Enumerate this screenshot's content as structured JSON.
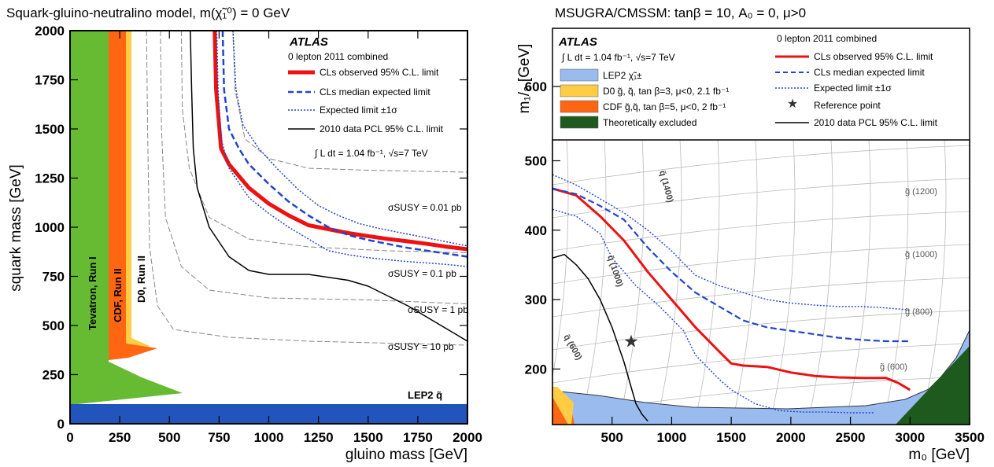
{
  "chart_data": [
    {
      "type": "line",
      "title": "Squark-gluino-neutralino model,  m(χ̃₁⁰) = 0 GeV",
      "xlabel": "gluino mass [GeV]",
      "ylabel": "squark mass [GeV]",
      "xlim": [
        0,
        2000
      ],
      "ylim": [
        0,
        2000
      ],
      "xticks": [
        "0",
        "250",
        "500",
        "750",
        "1000",
        "1250",
        "1500",
        "1750",
        "2000"
      ],
      "yticks": [
        "0",
        "250",
        "500",
        "750",
        "1000",
        "1250",
        "1500",
        "1750",
        "2000"
      ],
      "experiment": "ATLAS",
      "dataset": "0 lepton 2011 combined",
      "luminosity": "∫ L dt = 1.04 fb⁻¹, √s=7 TeV",
      "legend_position": "top-right",
      "legend": [
        {
          "label": "CLs observed 95% C.L. limit",
          "color": "#ee1111",
          "style": "solid-thick"
        },
        {
          "label": "CLs median expected limit",
          "color": "#2244cc",
          "style": "dashed"
        },
        {
          "label": "Expected limit ±1σ",
          "color": "#2244cc",
          "style": "dotted"
        },
        {
          "label": "2010 data PCL 95% C.L. limit",
          "color": "#000000",
          "style": "solid"
        }
      ],
      "series": [
        {
          "name": "CLs observed 95% C.L. limit",
          "x": [
            728,
            735,
            760,
            800,
            900,
            1000,
            1100,
            1200,
            1300,
            1400,
            1500,
            1600,
            1700,
            1800,
            1900,
            2000
          ],
          "y": [
            2000,
            1700,
            1400,
            1320,
            1200,
            1120,
            1060,
            1010,
            990,
            970,
            955,
            940,
            928,
            915,
            900,
            888
          ]
        },
        {
          "name": "CLs median expected limit",
          "x": [
            768,
            775,
            800,
            850,
            900,
            1000,
            1100,
            1200,
            1300,
            1400,
            1500,
            1600,
            1700,
            1800,
            1900,
            2000
          ],
          "y": [
            2000,
            1700,
            1500,
            1400,
            1320,
            1220,
            1130,
            1060,
            1000,
            960,
            935,
            915,
            895,
            880,
            865,
            850
          ]
        },
        {
          "name": "Expected limit +1σ",
          "x": [
            820,
            835,
            870,
            950,
            1050,
            1150,
            1250,
            1350,
            1450,
            1550,
            1650,
            1750,
            1850,
            1950,
            2000
          ],
          "y": [
            2000,
            1700,
            1520,
            1400,
            1290,
            1190,
            1110,
            1060,
            1020,
            995,
            975,
            955,
            935,
            915,
            905
          ]
        },
        {
          "name": "Expected limit −1σ",
          "x": [
            738,
            745,
            760,
            800,
            900,
            1000,
            1100,
            1200,
            1300,
            1400,
            1500,
            1600,
            1700,
            1800,
            1900,
            2000
          ],
          "y": [
            2000,
            1700,
            1450,
            1300,
            1150,
            1070,
            1000,
            940,
            880,
            860,
            845,
            835,
            825,
            818,
            810,
            800
          ]
        },
        {
          "name": "2010 data PCL 95% C.L. limit",
          "x": [
            605,
            612,
            620,
            640,
            700,
            800,
            900,
            1000,
            1200,
            1400,
            1500,
            1600,
            1700,
            1800,
            1900,
            2000
          ],
          "y": [
            2000,
            1700,
            1400,
            1200,
            1000,
            850,
            780,
            760,
            760,
            730,
            700,
            650,
            600,
            540,
            480,
            420
          ]
        }
      ],
      "excluded_regions": [
        {
          "name": "Tevatron, Run I",
          "color": "#66bb33"
        },
        {
          "name": "CDF, Run II",
          "color": "#ff6611"
        },
        {
          "name": "D0, Run II",
          "color": "#ffcc44"
        },
        {
          "name": "LEP2 q̃",
          "color": "#2255bb"
        }
      ],
      "cross_section_labels": [
        "σSUSY = 0.01 pb",
        "σSUSY = 0.1 pb",
        "σSUSY = 1 pb",
        "σSUSY = 10 pb"
      ]
    },
    {
      "type": "line",
      "title": "MSUGRA/CMSSM: tanβ = 10, A₀ = 0, μ>0",
      "xlabel": "m₀ [GeV]",
      "ylabel": "m₁/₂ [GeV]",
      "xlim": [
        0,
        3500
      ],
      "ylim": [
        120,
        530
      ],
      "xticks": [
        "500",
        "1000",
        "1500",
        "2000",
        "2500",
        "3000",
        "3500"
      ],
      "yticks": [
        "200",
        "300",
        "400",
        "500",
        "600"
      ],
      "experiment": "ATLAS",
      "dataset": "0 lepton 2011 combined",
      "luminosity": "∫ L dt = 1.04 fb⁻¹, √s=7 TeV",
      "legend_position": "top",
      "legend": [
        {
          "label": "LEP2 χ̃₁±",
          "color": "#99bbee",
          "style": "box"
        },
        {
          "label": "D0 g̃, q̃, tan β=3, μ<0, 2.1 fb⁻¹",
          "color": "#ffcc44",
          "style": "box"
        },
        {
          "label": "CDF g̃,q̃, tan β=5, μ<0, 2 fb⁻¹",
          "color": "#ff6611",
          "style": "box"
        },
        {
          "label": "Theoretically excluded",
          "color": "#1e5a1e",
          "style": "box"
        },
        {
          "label": "CLs observed 95% C.L. limit",
          "color": "#ee1111",
          "style": "solid-thick"
        },
        {
          "label": "CLs median expected limit",
          "color": "#2244cc",
          "style": "dashed"
        },
        {
          "label": "Expected limit ±1σ",
          "color": "#2244cc",
          "style": "dotted"
        },
        {
          "label": "Reference point",
          "color": "#333333",
          "style": "star"
        },
        {
          "label": "2010 data PCL 95% C.L. limit",
          "color": "#000000",
          "style": "solid"
        }
      ],
      "series": [
        {
          "name": "CLs observed 95% C.L. limit",
          "x": [
            0,
            200,
            400,
            600,
            800,
            1000,
            1200,
            1400,
            1500,
            1600,
            1800,
            2000,
            2200,
            2400,
            2600,
            2800,
            2900,
            3000
          ],
          "y": [
            460,
            450,
            420,
            385,
            340,
            300,
            260,
            225,
            208,
            205,
            203,
            195,
            190,
            188,
            187,
            187,
            180,
            170
          ]
        },
        {
          "name": "CLs median expected limit",
          "x": [
            0,
            200,
            400,
            600,
            800,
            1000,
            1200,
            1400,
            1600,
            1800,
            2000,
            2200,
            2400,
            2600,
            2800,
            3000
          ],
          "y": [
            460,
            452,
            435,
            415,
            375,
            340,
            310,
            290,
            270,
            260,
            255,
            250,
            245,
            242,
            240,
            240
          ]
        },
        {
          "name": "Expected limit +1σ",
          "x": [
            0,
            200,
            400,
            600,
            800,
            1000,
            1200,
            1400,
            1600,
            1800,
            2000,
            2200,
            2400,
            2600,
            2800,
            3000
          ],
          "y": [
            480,
            465,
            445,
            425,
            400,
            370,
            335,
            320,
            310,
            300,
            295,
            292,
            290,
            290,
            288,
            285
          ]
        },
        {
          "name": "Expected limit −1σ",
          "x": [
            0,
            200,
            400,
            500,
            700,
            900,
            1100,
            1200,
            1400,
            1500,
            1700,
            1900,
            2100,
            2300,
            2500,
            2700
          ],
          "y": [
            430,
            420,
            395,
            360,
            320,
            290,
            255,
            220,
            185,
            170,
            150,
            140,
            138,
            138,
            137,
            137
          ]
        },
        {
          "name": "2010 data PCL 95% C.L. limit",
          "x": [
            0,
            100,
            200,
            300,
            400,
            500,
            600,
            650,
            700,
            750,
            800
          ],
          "y": [
            360,
            365,
            350,
            330,
            300,
            260,
            210,
            180,
            150,
            135,
            125
          ]
        }
      ],
      "reference_point": {
        "x": 660,
        "y": 240
      },
      "isomass_labels": [
        "q̃ (1400)",
        "g̃ (1200)",
        "g̃ (1000)",
        "g̃ (800)",
        "g̃ (600)",
        "q̃ (1000)",
        "q̃ (600)"
      ]
    }
  ]
}
